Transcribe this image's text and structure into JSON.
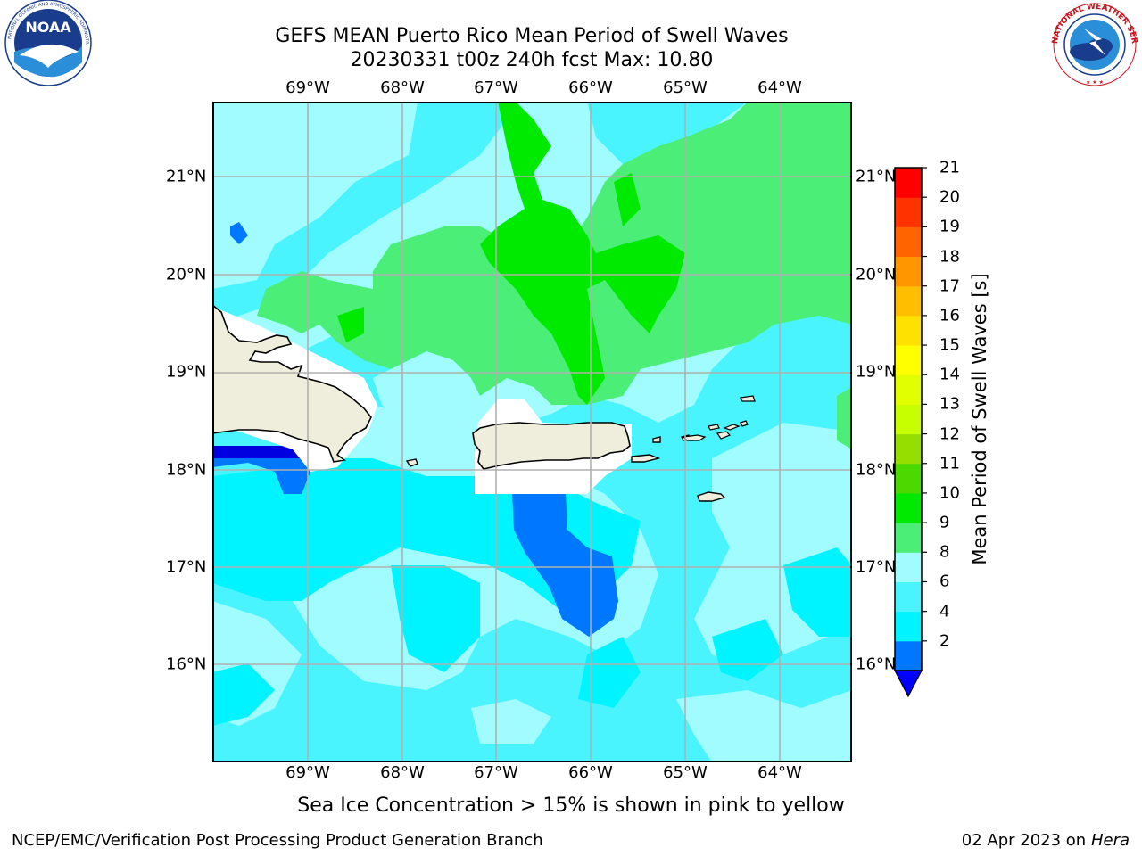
{
  "header": {
    "title_line1": "GEFS MEAN Puerto Rico Mean Period of Swell Waves",
    "title_line2": "20230331 t00z 240h fcst   Max: 10.80"
  },
  "logos": {
    "left": {
      "icon": "noaa-logo",
      "text": "NOAA",
      "ring_text": "NATIONAL OCEANIC AND ATMOSPHERIC ADMINISTRATION · U.S. DEPARTMENT OF COMMERCE"
    },
    "right": {
      "icon": "nws-logo",
      "ring_text": "NATIONAL WEATHER SERVICE"
    }
  },
  "map": {
    "longitude_labels": [
      "69°W",
      "68°W",
      "67°W",
      "66°W",
      "65°W",
      "64°W"
    ],
    "latitude_labels": [
      "21°N",
      "20°N",
      "19°N",
      "18°N",
      "17°N",
      "16°N"
    ],
    "colors": {
      "land": "#efeddc",
      "grid": "#b0b0b0",
      "c_2_4": "#0077ff",
      "c_4_6": "#00f4ff",
      "c_6_8": "#4af4ff",
      "c_8_9": "#a0fcff",
      "c_9_10": "#4bef78",
      "c_10_11": "#00ea00"
    }
  },
  "colorbar": {
    "title": "Mean Period of Swell Waves [s]",
    "tick_labels": [
      "21",
      "20",
      "19",
      "18",
      "17",
      "16",
      "15",
      "14",
      "13",
      "12",
      "11",
      "10",
      "9",
      "8",
      "6",
      "4",
      "2"
    ],
    "colors_bottom_to_top": [
      "#0077ff",
      "#00f4ff",
      "#4af4ff",
      "#a0fcff",
      "#4bef78",
      "#00ea00",
      "#4bd900",
      "#96de00",
      "#c8ff00",
      "#e1ff00",
      "#ffff00",
      "#ffe100",
      "#ffbe00",
      "#ff9600",
      "#ff6400",
      "#ff3200",
      "#ff0000"
    ],
    "extend_color": "#0000ff"
  },
  "footer": {
    "note": "Sea Ice Concentration > 15% is shown in pink to yellow",
    "branch": "NCEP/EMC/Verification Post Processing Product Generation Branch",
    "date": "02 Apr 2023 on ",
    "machine": "Hera"
  }
}
